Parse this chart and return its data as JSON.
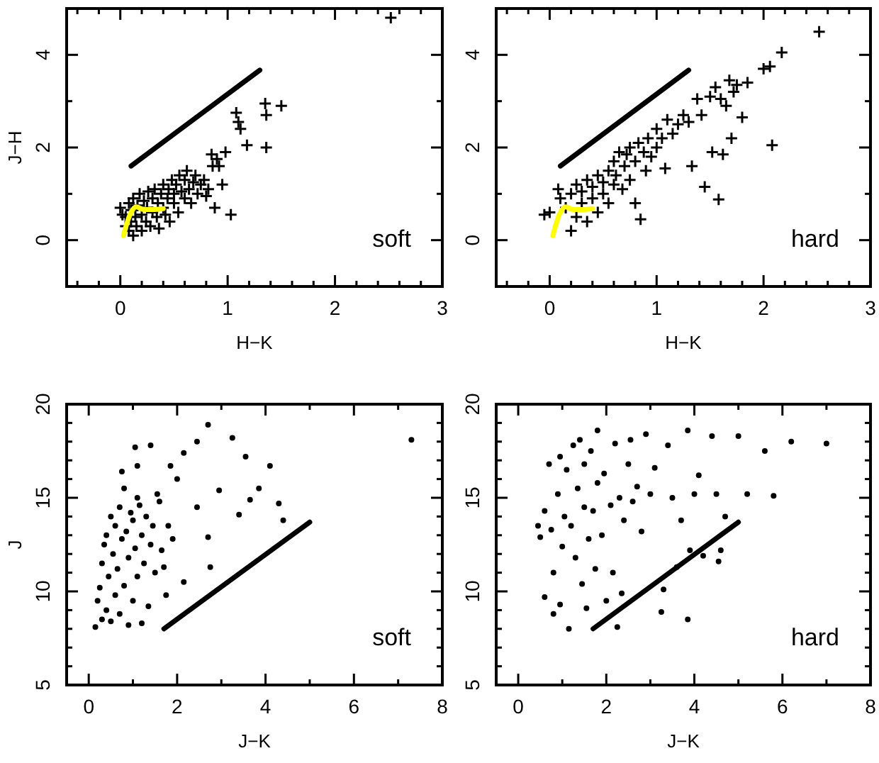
{
  "chart_data": [
    {
      "type": "scatter",
      "xlabel": "H−K",
      "ylabel": "J−H",
      "xlim": [
        -0.5,
        3
      ],
      "ylim": [
        -1,
        5
      ],
      "xticks": [
        {
          "value": -0.4,
          "label": null
        },
        {
          "value": -0.2,
          "label": null
        },
        0,
        {
          "value": 0.2,
          "label": null
        },
        {
          "value": 0.4,
          "label": null
        },
        {
          "value": 0.6,
          "label": null
        },
        {
          "value": 0.8,
          "label": null
        },
        1,
        {
          "value": 1.2,
          "label": null
        },
        {
          "value": 1.4,
          "label": null
        },
        {
          "value": 1.6,
          "label": null
        },
        {
          "value": 1.8,
          "label": null
        },
        2,
        {
          "value": 2.2,
          "label": null
        },
        {
          "value": 2.4,
          "label": null
        },
        {
          "value": 2.6,
          "label": null
        },
        {
          "value": 2.8,
          "label": null
        },
        3
      ],
      "yticks": [
        {
          "value": -1,
          "label": null
        },
        0,
        {
          "value": 1,
          "label": null
        },
        2,
        {
          "value": 3,
          "label": null
        },
        4
      ],
      "annotations": [
        "soft"
      ],
      "series": [
        {
          "type": "scatter",
          "marker": "cross",
          "color": "#000000",
          "x": [
            0.0,
            0.02,
            0.05,
            0.05,
            0.08,
            0.08,
            0.1,
            0.1,
            0.12,
            0.12,
            0.14,
            0.15,
            0.16,
            0.18,
            0.2,
            0.2,
            0.22,
            0.24,
            0.25,
            0.26,
            0.28,
            0.3,
            0.3,
            0.32,
            0.34,
            0.35,
            0.36,
            0.38,
            0.4,
            0.4,
            0.42,
            0.44,
            0.45,
            0.46,
            0.48,
            0.5,
            0.5,
            0.52,
            0.54,
            0.55,
            0.57,
            0.6,
            0.6,
            0.62,
            0.64,
            0.66,
            0.68,
            0.7,
            0.72,
            0.75,
            0.78,
            0.8,
            0.82,
            0.85,
            0.86,
            0.88,
            0.9,
            0.92,
            0.95,
            0.98,
            1.03,
            1.08,
            1.1,
            1.12,
            1.18,
            1.35,
            1.36,
            1.36,
            1.5,
            2.52
          ],
          "values": [
            0.7,
            0.55,
            0.3,
            0.5,
            0.2,
            0.8,
            0.4,
            0.65,
            0.1,
            0.9,
            0.5,
            0.3,
            0.75,
            1.0,
            0.2,
            0.55,
            0.85,
            0.4,
            0.7,
            1.05,
            0.3,
            0.6,
            0.9,
            1.1,
            0.5,
            0.8,
            0.25,
            1.0,
            0.7,
            1.2,
            0.55,
            0.9,
            1.1,
            0.4,
            1.3,
            0.8,
            1.0,
            1.2,
            0.6,
            1.4,
            1.05,
            0.9,
            1.3,
            1.5,
            1.1,
            0.8,
            1.25,
            1.4,
            1.0,
            1.2,
            1.3,
            0.95,
            1.1,
            1.85,
            1.6,
            0.7,
            1.75,
            1.6,
            1.2,
            1.9,
            0.55,
            2.75,
            2.55,
            2.4,
            2.05,
            2.95,
            2.7,
            2.0,
            2.9,
            4.8
          ]
        },
        {
          "type": "line",
          "color": "#000000",
          "x": [
            0.1,
            1.3
          ],
          "values": [
            1.6,
            3.67
          ]
        },
        {
          "type": "line",
          "color": "#ffff00",
          "x": [
            0.03,
            0.06,
            0.1,
            0.15,
            0.22,
            0.3,
            0.4
          ],
          "values": [
            0.1,
            0.35,
            0.6,
            0.72,
            0.66,
            0.66,
            0.68
          ]
        }
      ]
    },
    {
      "type": "scatter",
      "xlabel": "H−K",
      "xlim": [
        -0.5,
        3
      ],
      "ylim": [
        -1,
        5
      ],
      "xticks": [
        {
          "value": -0.4,
          "label": null
        },
        {
          "value": -0.2,
          "label": null
        },
        0,
        {
          "value": 0.2,
          "label": null
        },
        {
          "value": 0.4,
          "label": null
        },
        {
          "value": 0.6,
          "label": null
        },
        {
          "value": 0.8,
          "label": null
        },
        1,
        {
          "value": 1.2,
          "label": null
        },
        {
          "value": 1.4,
          "label": null
        },
        {
          "value": 1.6,
          "label": null
        },
        {
          "value": 1.8,
          "label": null
        },
        2,
        {
          "value": 2.2,
          "label": null
        },
        {
          "value": 2.4,
          "label": null
        },
        {
          "value": 2.6,
          "label": null
        },
        {
          "value": 2.8,
          "label": null
        },
        3
      ],
      "yticks": [
        {
          "value": -1,
          "label": null
        },
        0,
        {
          "value": 1,
          "label": null
        },
        2,
        {
          "value": 3,
          "label": null
        },
        4
      ],
      "annotations": [
        "hard"
      ],
      "series": [
        {
          "type": "scatter",
          "marker": "cross",
          "color": "#000000",
          "x": [
            0.0,
            -0.05,
            0.08,
            0.1,
            0.15,
            0.2,
            0.2,
            0.25,
            0.25,
            0.3,
            0.3,
            0.35,
            0.35,
            0.4,
            0.4,
            0.45,
            0.45,
            0.5,
            0.5,
            0.55,
            0.55,
            0.6,
            0.6,
            0.62,
            0.65,
            0.68,
            0.7,
            0.72,
            0.75,
            0.75,
            0.8,
            0.8,
            0.83,
            0.85,
            0.88,
            0.9,
            0.92,
            0.95,
            1.0,
            1.0,
            1.05,
            1.08,
            1.1,
            1.15,
            1.2,
            1.25,
            1.3,
            1.33,
            1.38,
            1.42,
            1.45,
            1.5,
            1.52,
            1.55,
            1.58,
            1.6,
            1.62,
            1.65,
            1.68,
            1.7,
            1.72,
            1.75,
            1.8,
            1.85,
            2.0,
            2.06,
            2.08,
            2.17,
            2.52
          ],
          "values": [
            0.6,
            0.55,
            1.1,
            0.9,
            0.7,
            0.2,
            1.0,
            0.5,
            1.2,
            0.8,
            1.05,
            0.4,
            1.3,
            0.9,
            1.15,
            0.6,
            1.4,
            1.0,
            1.25,
            1.5,
            0.8,
            1.2,
            1.7,
            1.4,
            1.9,
            1.1,
            1.6,
            1.85,
            2.0,
            1.3,
            1.7,
            0.8,
            2.1,
            0.45,
            1.9,
            1.5,
            2.2,
            1.8,
            2.0,
            2.4,
            2.2,
            1.55,
            2.6,
            2.3,
            2.5,
            2.7,
            2.55,
            1.6,
            3.05,
            2.7,
            1.15,
            3.1,
            1.9,
            3.3,
            0.88,
            3.05,
            1.85,
            2.9,
            3.45,
            2.2,
            3.2,
            3.35,
            2.65,
            3.4,
            3.7,
            3.75,
            2.05,
            4.05,
            4.5
          ]
        },
        {
          "type": "line",
          "color": "#000000",
          "x": [
            0.1,
            1.3
          ],
          "values": [
            1.6,
            3.67
          ]
        },
        {
          "type": "line",
          "color": "#ffff00",
          "x": [
            0.03,
            0.06,
            0.1,
            0.15,
            0.22,
            0.3,
            0.4
          ],
          "values": [
            0.1,
            0.35,
            0.6,
            0.72,
            0.66,
            0.66,
            0.68
          ]
        }
      ]
    },
    {
      "type": "scatter",
      "xlabel": "J−K",
      "ylabel": "J",
      "xlim": [
        -0.5,
        8
      ],
      "ylim": [
        5,
        20
      ],
      "xticks": [
        0,
        {
          "value": 1,
          "label": null
        },
        2,
        {
          "value": 3,
          "label": null
        },
        4,
        {
          "value": 5,
          "label": null
        },
        6,
        {
          "value": 7,
          "label": null
        },
        8
      ],
      "yticks": [
        5,
        {
          "value": 6,
          "label": null
        },
        {
          "value": 7,
          "label": null
        },
        {
          "value": 8,
          "label": null
        },
        {
          "value": 9,
          "label": null
        },
        10,
        {
          "value": 11,
          "label": null
        },
        {
          "value": 12,
          "label": null
        },
        {
          "value": 13,
          "label": null
        },
        {
          "value": 14,
          "label": null
        },
        15,
        {
          "value": 16,
          "label": null
        },
        {
          "value": 17,
          "label": null
        },
        {
          "value": 18,
          "label": null
        },
        {
          "value": 19,
          "label": null
        },
        20
      ],
      "annotations": [
        "soft"
      ],
      "series": [
        {
          "type": "scatter",
          "marker": "circle",
          "color": "#000000",
          "x": [
            0.15,
            0.2,
            0.25,
            0.3,
            0.3,
            0.35,
            0.4,
            0.4,
            0.45,
            0.5,
            0.5,
            0.55,
            0.6,
            0.6,
            0.65,
            0.7,
            0.7,
            0.75,
            0.8,
            0.8,
            0.85,
            0.9,
            0.9,
            0.95,
            1.0,
            1.0,
            1.05,
            1.1,
            1.1,
            1.15,
            1.2,
            1.2,
            1.25,
            1.3,
            1.35,
            1.4,
            1.45,
            1.5,
            1.55,
            1.6,
            1.65,
            1.7,
            1.75,
            1.8,
            1.85,
            1.9,
            2.0,
            2.15,
            1.05,
            1.4,
            0.75,
            1.1,
            2.15,
            2.45,
            2.45,
            2.7,
            2.7,
            2.75,
            2.95,
            3.25,
            3.4,
            3.55,
            3.65,
            3.85,
            4.1,
            4.3,
            4.4,
            7.3
          ],
          "values": [
            8.1,
            9.5,
            10.2,
            8.5,
            11.5,
            12.5,
            9.0,
            13.0,
            10.8,
            8.4,
            14.0,
            12.0,
            9.8,
            13.5,
            11.2,
            8.8,
            14.5,
            12.8,
            10.3,
            15.5,
            13.2,
            8.2,
            11.8,
            14.2,
            9.5,
            13.8,
            12.3,
            15.0,
            10.8,
            14.6,
            8.3,
            13.0,
            11.5,
            14.0,
            9.2,
            12.5,
            13.5,
            11.0,
            15.2,
            14.8,
            12.2,
            11.3,
            9.8,
            13.5,
            16.7,
            12.8,
            16.0,
            10.5,
            17.7,
            17.8,
            16.4,
            16.7,
            17.4,
            14.5,
            18.0,
            18.9,
            12.9,
            11.3,
            15.4,
            18.2,
            14.1,
            17.2,
            14.9,
            15.5,
            16.7,
            14.7,
            13.8,
            18.1
          ]
        },
        {
          "type": "line",
          "color": "#000000",
          "x": [
            1.7,
            5.0
          ],
          "values": [
            8.0,
            13.7
          ]
        }
      ]
    },
    {
      "type": "scatter",
      "xlabel": "J−K",
      "xlim": [
        -0.5,
        8
      ],
      "ylim": [
        5,
        20
      ],
      "xticks": [
        0,
        {
          "value": 1,
          "label": null
        },
        2,
        {
          "value": 3,
          "label": null
        },
        4,
        {
          "value": 5,
          "label": null
        },
        6,
        {
          "value": 7,
          "label": null
        },
        8
      ],
      "yticks": [
        5,
        {
          "value": 6,
          "label": null
        },
        {
          "value": 7,
          "label": null
        },
        {
          "value": 8,
          "label": null
        },
        {
          "value": 9,
          "label": null
        },
        10,
        {
          "value": 11,
          "label": null
        },
        {
          "value": 12,
          "label": null
        },
        {
          "value": 13,
          "label": null
        },
        {
          "value": 14,
          "label": null
        },
        15,
        {
          "value": 16,
          "label": null
        },
        {
          "value": 17,
          "label": null
        },
        {
          "value": 18,
          "label": null
        },
        {
          "value": 19,
          "label": null
        },
        20
      ],
      "annotations": [
        "hard"
      ],
      "series": [
        {
          "type": "scatter",
          "marker": "circle",
          "color": "#000000",
          "x": [
            0.45,
            0.5,
            0.6,
            0.6,
            0.7,
            0.75,
            0.8,
            0.8,
            0.9,
            0.95,
            0.95,
            1.0,
            1.05,
            1.1,
            1.15,
            1.2,
            1.25,
            1.3,
            1.35,
            1.4,
            1.45,
            1.5,
            1.5,
            1.55,
            1.6,
            1.65,
            1.7,
            1.75,
            1.8,
            1.8,
            1.9,
            1.95,
            2.0,
            2.1,
            2.15,
            2.2,
            2.25,
            2.3,
            2.35,
            2.4,
            2.5,
            2.55,
            2.6,
            2.7,
            2.8,
            2.9,
            3.0,
            3.1,
            3.25,
            3.3,
            3.4,
            3.5,
            3.6,
            3.7,
            3.85,
            3.85,
            3.9,
            4.0,
            4.1,
            4.2,
            4.4,
            4.5,
            4.55,
            4.6,
            4.7,
            5.0,
            5.2,
            5.6,
            5.8,
            6.2,
            7.0
          ],
          "values": [
            13.5,
            12.9,
            9.7,
            14.3,
            16.8,
            13.3,
            11.0,
            8.8,
            15.2,
            9.3,
            17.2,
            12.4,
            14.0,
            16.5,
            8.0,
            13.5,
            17.8,
            11.8,
            15.5,
            18.1,
            10.4,
            14.5,
            16.8,
            9.1,
            12.8,
            17.5,
            14.3,
            11.2,
            18.6,
            15.8,
            13.0,
            16.3,
            9.5,
            14.6,
            11.0,
            17.9,
            8.1,
            15.0,
            9.9,
            13.8,
            16.8,
            18.1,
            14.8,
            15.6,
            13.2,
            18.4,
            15.2,
            16.6,
            8.9,
            10.1,
            17.8,
            15.0,
            11.3,
            13.8,
            18.6,
            8.5,
            12.2,
            15.2,
            16.2,
            11.9,
            18.3,
            15.2,
            11.6,
            12.2,
            14.0,
            18.3,
            15.2,
            17.5,
            15.1,
            18.0,
            17.9
          ]
        },
        {
          "type": "line",
          "color": "#000000",
          "x": [
            1.7,
            5.0
          ],
          "values": [
            8.0,
            13.7
          ]
        }
      ]
    }
  ]
}
